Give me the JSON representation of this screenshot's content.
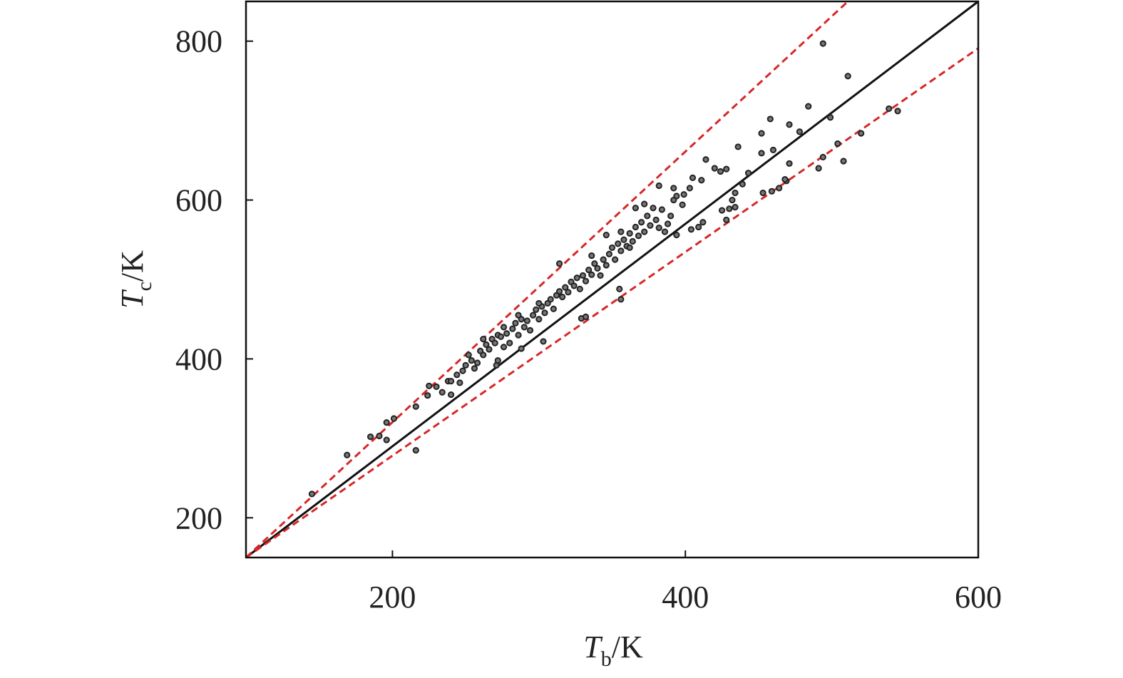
{
  "chart_data": {
    "type": "scatter",
    "x_label": {
      "symbol": "T",
      "sub": "b",
      "unit": "/K"
    },
    "y_label": {
      "symbol": "T",
      "sub": "c",
      "unit": "/K"
    },
    "xlim": [
      100,
      600
    ],
    "xticks": [
      200,
      400,
      600
    ],
    "ylim": [
      150,
      850
    ],
    "yticks": [
      200,
      400,
      600,
      800
    ],
    "series": [
      {
        "color": "#222222",
        "x": [
          145,
          169,
          185,
          191,
          196,
          196,
          201,
          216,
          216,
          224,
          225,
          494,
          511,
          484,
          499,
          458,
          539,
          545,
          520,
          504,
          508,
          494,
          491,
          471,
          478,
          471,
          469,
          452,
          452,
          460,
          468,
          464,
          436,
          443,
          439,
          459,
          453,
          434,
          432,
          434,
          430,
          425,
          428,
          414,
          420,
          424,
          428,
          405,
          411,
          403,
          399,
          394,
          412,
          409,
          404,
          398,
          355,
          356,
          329,
          332,
          303,
          288,
          272,
          271,
          230,
          234,
          238,
          240,
          244,
          246,
          248,
          250,
          252,
          254,
          256,
          258,
          260,
          262,
          264,
          266,
          268,
          270,
          272,
          274,
          276,
          278,
          280,
          282,
          284,
          286,
          288,
          290,
          292,
          294,
          296,
          298,
          300,
          302,
          304,
          306,
          308,
          310,
          312,
          314,
          316,
          318,
          320,
          322,
          324,
          326,
          328,
          330,
          332,
          334,
          336,
          338,
          340,
          342,
          344,
          346,
          348,
          350,
          352,
          354,
          356,
          358,
          360,
          362,
          364,
          366,
          368,
          370,
          372,
          374,
          376,
          378,
          380,
          382,
          384,
          386,
          388,
          390,
          392,
          394,
          366,
          372,
          356,
          346,
          314,
          286,
          300,
          262,
          276,
          240,
          336,
          382,
          362,
          392
        ],
        "values": [
          230,
          279,
          302,
          303,
          320,
          298,
          325,
          285,
          340,
          354,
          366,
          797,
          756,
          718,
          704,
          702,
          715,
          712,
          684,
          671,
          649,
          654,
          640,
          695,
          686,
          646,
          624,
          684,
          659,
          663,
          626,
          615,
          667,
          634,
          620,
          611,
          609,
          609,
          600,
          591,
          589,
          587,
          575,
          651,
          640,
          636,
          639,
          628,
          625,
          615,
          607,
          605,
          572,
          566,
          563,
          594,
          488,
          475,
          451,
          453,
          422,
          413,
          398,
          392,
          365,
          358,
          372,
          355,
          380,
          370,
          385,
          392,
          405,
          398,
          388,
          395,
          410,
          405,
          418,
          412,
          425,
          420,
          430,
          428,
          440,
          432,
          420,
          438,
          445,
          430,
          450,
          440,
          448,
          436,
          455,
          462,
          450,
          466,
          458,
          470,
          475,
          463,
          480,
          485,
          478,
          490,
          484,
          497,
          492,
          502,
          488,
          505,
          498,
          512,
          506,
          520,
          514,
          505,
          525,
          518,
          532,
          540,
          525,
          545,
          536,
          550,
          542,
          558,
          548,
          566,
          555,
          572,
          560,
          580,
          568,
          590,
          575,
          565,
          588,
          560,
          570,
          580,
          600,
          556,
          590,
          595,
          560,
          556,
          520,
          455,
          470,
          425,
          415,
          372,
          530,
          618,
          540,
          615
        ]
      }
    ],
    "lines": [
      {
        "color": "#111111",
        "dash": false,
        "x": [
          100,
          600
        ],
        "values": [
          150,
          850
        ]
      },
      {
        "color": "#d62728",
        "dash": true,
        "x": [
          100,
          511
        ],
        "values": [
          150,
          850
        ]
      },
      {
        "color": "#d62728",
        "dash": true,
        "x": [
          100,
          600
        ],
        "values": [
          150,
          791
        ]
      }
    ]
  }
}
